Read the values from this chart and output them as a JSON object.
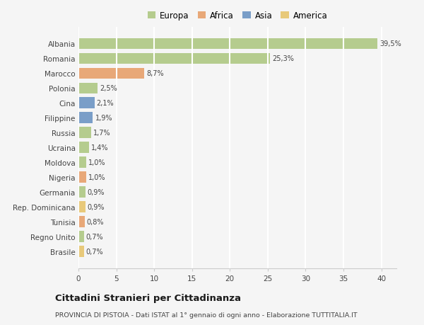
{
  "categories": [
    "Brasile",
    "Regno Unito",
    "Tunisia",
    "Rep. Dominicana",
    "Germania",
    "Nigeria",
    "Moldova",
    "Ucraina",
    "Russia",
    "Filippine",
    "Cina",
    "Polonia",
    "Marocco",
    "Romania",
    "Albania"
  ],
  "values": [
    0.7,
    0.7,
    0.8,
    0.9,
    0.9,
    1.0,
    1.0,
    1.4,
    1.7,
    1.9,
    2.1,
    2.5,
    8.7,
    25.3,
    39.5
  ],
  "labels": [
    "0,7%",
    "0,7%",
    "0,8%",
    "0,9%",
    "0,9%",
    "1,0%",
    "1,0%",
    "1,4%",
    "1,7%",
    "1,9%",
    "2,1%",
    "2,5%",
    "8,7%",
    "25,3%",
    "39,5%"
  ],
  "colors": [
    "#e8c97a",
    "#b5cc8e",
    "#e8a878",
    "#e8c97a",
    "#b5cc8e",
    "#e8a878",
    "#b5cc8e",
    "#b5cc8e",
    "#b5cc8e",
    "#7a9ec8",
    "#7a9ec8",
    "#b5cc8e",
    "#e8a878",
    "#b5cc8e",
    "#b5cc8e"
  ],
  "legend_labels": [
    "Europa",
    "Africa",
    "Asia",
    "America"
  ],
  "legend_colors": [
    "#b5cc8e",
    "#e8a878",
    "#7a9ec8",
    "#e8c97a"
  ],
  "title": "Cittadini Stranieri per Cittadinanza",
  "subtitle": "PROVINCIA DI PISTOIA - Dati ISTAT al 1° gennaio di ogni anno - Elaborazione TUTTITALIA.IT",
  "xlim": [
    0,
    42
  ],
  "xticks": [
    0,
    5,
    10,
    15,
    20,
    25,
    30,
    35,
    40
  ],
  "bg_color": "#f5f5f5",
  "grid_color": "#ffffff",
  "bar_height": 0.75
}
